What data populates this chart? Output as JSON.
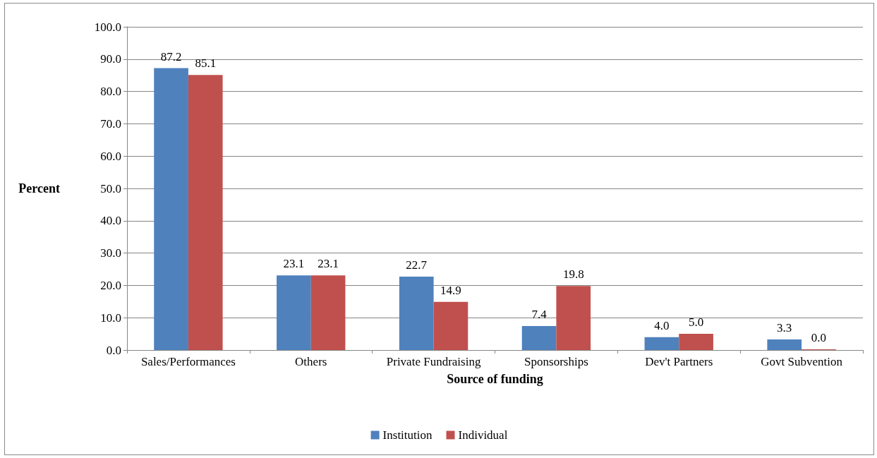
{
  "chart_data": {
    "type": "bar",
    "xlabel": "Source of funding",
    "ylabel": "Percent",
    "categories": [
      "Sales/Performances",
      "Others",
      "Private Fundraising",
      "Sponsorships",
      "Dev't Partners",
      "Govt Subvention"
    ],
    "series": [
      {
        "name": "Institution",
        "color": "#4f81bd",
        "values": [
          87.2,
          23.1,
          22.7,
          7.4,
          4.0,
          3.3
        ],
        "value_labels": [
          "87.2",
          "23.1",
          "22.7",
          "7.4",
          "4.0",
          "3.3"
        ]
      },
      {
        "name": "Individual",
        "color": "#c0504d",
        "values": [
          85.1,
          23.1,
          14.9,
          19.8,
          5.0,
          0.0
        ],
        "value_labels": [
          "85.1",
          "23.1",
          "14.9",
          "19.8",
          "5.0",
          "0.0"
        ]
      }
    ],
    "ylim": [
      0,
      100
    ],
    "yticks": [
      {
        "value": 0,
        "label": "0.0"
      },
      {
        "value": 10,
        "label": "10.0"
      },
      {
        "value": 20,
        "label": "20.0"
      },
      {
        "value": 30,
        "label": "30.0"
      },
      {
        "value": 40,
        "label": "40.0"
      },
      {
        "value": 50,
        "label": "50.0"
      },
      {
        "value": 60,
        "label": "60.0"
      },
      {
        "value": 70,
        "label": "70.0"
      },
      {
        "value": 80,
        "label": "80.0"
      },
      {
        "value": 90,
        "label": "90.0"
      },
      {
        "value": 100,
        "label": "100.0"
      }
    ],
    "grid": "y",
    "legend": "bottom"
  }
}
